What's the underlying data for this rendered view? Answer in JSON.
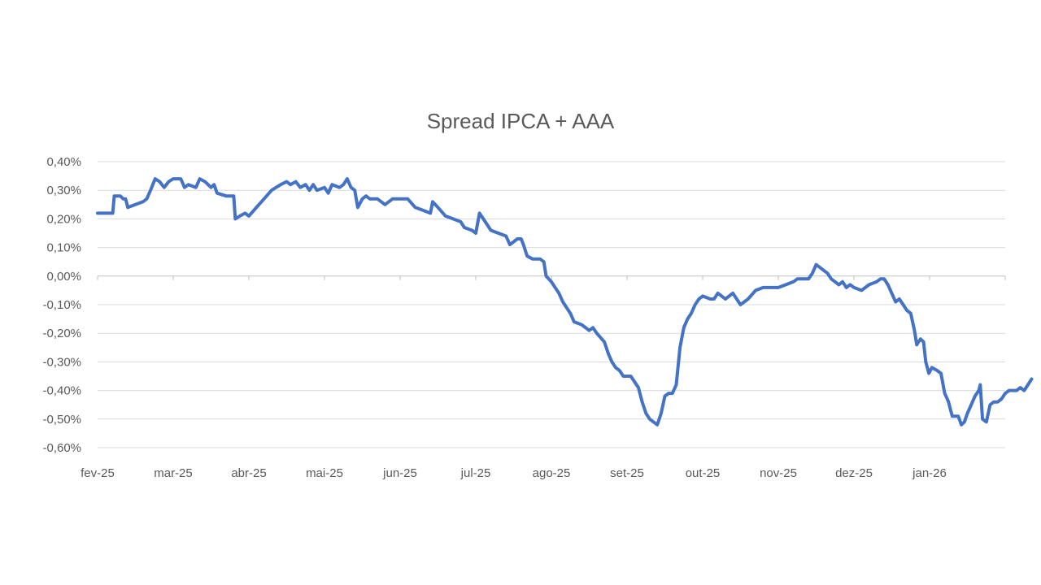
{
  "chart_data": {
    "type": "line",
    "title": "Spread IPCA + AAA",
    "xlabel": "",
    "ylabel": "",
    "ylim": [
      -0.6,
      0.4
    ],
    "yticks": [
      0.4,
      0.3,
      0.2,
      0.1,
      0.0,
      -0.1,
      -0.2,
      -0.3,
      -0.4,
      -0.5,
      -0.6
    ],
    "ytick_labels": [
      "0,40%",
      "0,30%",
      "0,20%",
      "0,10%",
      "0,00%",
      "-0,10%",
      "-0,20%",
      "-0,30%",
      "-0,40%",
      "-0,50%",
      "-0,60%"
    ],
    "xlim": [
      0,
      12
    ],
    "xtick_labels": [
      "fev-25",
      "mar-25",
      "abr-25",
      "mai-25",
      "jun-25",
      "jul-25",
      "ago-25",
      "set-25",
      "out-25",
      "nov-25",
      "dez-25",
      "jan-26"
    ],
    "grid": true,
    "legend": "none",
    "series": [
      {
        "name": "Spread IPCA + AAA",
        "color": "#4472C4",
        "points": [
          [
            0.0,
            0.22
          ],
          [
            0.2,
            0.22
          ],
          [
            0.22,
            0.28
          ],
          [
            0.3,
            0.28
          ],
          [
            0.34,
            0.27
          ],
          [
            0.37,
            0.27
          ],
          [
            0.4,
            0.24
          ],
          [
            0.5,
            0.25
          ],
          [
            0.6,
            0.26
          ],
          [
            0.65,
            0.27
          ],
          [
            0.7,
            0.3
          ],
          [
            0.76,
            0.34
          ],
          [
            0.82,
            0.33
          ],
          [
            0.88,
            0.31
          ],
          [
            0.94,
            0.33
          ],
          [
            1.0,
            0.34
          ],
          [
            1.1,
            0.34
          ],
          [
            1.15,
            0.31
          ],
          [
            1.2,
            0.32
          ],
          [
            1.3,
            0.31
          ],
          [
            1.35,
            0.34
          ],
          [
            1.42,
            0.33
          ],
          [
            1.5,
            0.31
          ],
          [
            1.54,
            0.32
          ],
          [
            1.58,
            0.29
          ],
          [
            1.7,
            0.28
          ],
          [
            1.8,
            0.28
          ],
          [
            1.82,
            0.2
          ],
          [
            1.88,
            0.21
          ],
          [
            1.95,
            0.22
          ],
          [
            2.0,
            0.21
          ],
          [
            2.1,
            0.24
          ],
          [
            2.2,
            0.27
          ],
          [
            2.3,
            0.3
          ],
          [
            2.42,
            0.32
          ],
          [
            2.5,
            0.33
          ],
          [
            2.55,
            0.32
          ],
          [
            2.62,
            0.33
          ],
          [
            2.68,
            0.31
          ],
          [
            2.75,
            0.32
          ],
          [
            2.8,
            0.3
          ],
          [
            2.85,
            0.32
          ],
          [
            2.9,
            0.3
          ],
          [
            3.0,
            0.31
          ],
          [
            3.05,
            0.29
          ],
          [
            3.1,
            0.32
          ],
          [
            3.2,
            0.31
          ],
          [
            3.25,
            0.32
          ],
          [
            3.3,
            0.34
          ],
          [
            3.35,
            0.31
          ],
          [
            3.4,
            0.3
          ],
          [
            3.44,
            0.24
          ],
          [
            3.5,
            0.27
          ],
          [
            3.55,
            0.28
          ],
          [
            3.6,
            0.27
          ],
          [
            3.7,
            0.27
          ],
          [
            3.8,
            0.25
          ],
          [
            3.9,
            0.27
          ],
          [
            4.0,
            0.27
          ],
          [
            4.1,
            0.27
          ],
          [
            4.2,
            0.24
          ],
          [
            4.3,
            0.23
          ],
          [
            4.4,
            0.22
          ],
          [
            4.43,
            0.26
          ],
          [
            4.5,
            0.24
          ],
          [
            4.6,
            0.21
          ],
          [
            4.7,
            0.2
          ],
          [
            4.8,
            0.19
          ],
          [
            4.85,
            0.17
          ],
          [
            4.95,
            0.16
          ],
          [
            5.0,
            0.15
          ],
          [
            5.05,
            0.22
          ],
          [
            5.1,
            0.2
          ],
          [
            5.2,
            0.16
          ],
          [
            5.3,
            0.15
          ],
          [
            5.4,
            0.14
          ],
          [
            5.45,
            0.11
          ],
          [
            5.5,
            0.12
          ],
          [
            5.55,
            0.13
          ],
          [
            5.6,
            0.13
          ],
          [
            5.63,
            0.11
          ],
          [
            5.68,
            0.07
          ],
          [
            5.75,
            0.06
          ],
          [
            5.8,
            0.06
          ],
          [
            5.85,
            0.06
          ],
          [
            5.9,
            0.05
          ],
          [
            5.93,
            0.0
          ],
          [
            6.0,
            -0.02
          ],
          [
            6.05,
            -0.04
          ],
          [
            6.1,
            -0.06
          ],
          [
            6.15,
            -0.09
          ],
          [
            6.2,
            -0.11
          ],
          [
            6.25,
            -0.13
          ],
          [
            6.3,
            -0.16
          ],
          [
            6.4,
            -0.17
          ],
          [
            6.5,
            -0.19
          ],
          [
            6.55,
            -0.18
          ],
          [
            6.6,
            -0.2
          ],
          [
            6.7,
            -0.23
          ],
          [
            6.75,
            -0.27
          ],
          [
            6.8,
            -0.3
          ],
          [
            6.85,
            -0.32
          ],
          [
            6.9,
            -0.33
          ],
          [
            6.95,
            -0.35
          ],
          [
            7.05,
            -0.35
          ],
          [
            7.1,
            -0.37
          ],
          [
            7.15,
            -0.39
          ],
          [
            7.2,
            -0.44
          ],
          [
            7.25,
            -0.48
          ],
          [
            7.3,
            -0.5
          ],
          [
            7.35,
            -0.51
          ],
          [
            7.4,
            -0.52
          ],
          [
            7.45,
            -0.48
          ],
          [
            7.5,
            -0.42
          ],
          [
            7.55,
            -0.41
          ],
          [
            7.6,
            -0.41
          ],
          [
            7.65,
            -0.38
          ],
          [
            7.7,
            -0.25
          ],
          [
            7.75,
            -0.18
          ],
          [
            7.8,
            -0.15
          ],
          [
            7.85,
            -0.13
          ],
          [
            7.9,
            -0.1
          ],
          [
            7.95,
            -0.08
          ],
          [
            8.0,
            -0.07
          ],
          [
            8.1,
            -0.08
          ],
          [
            8.15,
            -0.08
          ],
          [
            8.2,
            -0.06
          ],
          [
            8.25,
            -0.07
          ],
          [
            8.3,
            -0.08
          ],
          [
            8.35,
            -0.07
          ],
          [
            8.4,
            -0.06
          ],
          [
            8.45,
            -0.08
          ],
          [
            8.5,
            -0.1
          ],
          [
            8.6,
            -0.08
          ],
          [
            8.7,
            -0.05
          ],
          [
            8.8,
            -0.04
          ],
          [
            8.9,
            -0.04
          ],
          [
            9.0,
            -0.04
          ],
          [
            9.1,
            -0.03
          ],
          [
            9.2,
            -0.02
          ],
          [
            9.25,
            -0.01
          ],
          [
            9.3,
            -0.01
          ],
          [
            9.4,
            -0.01
          ],
          [
            9.45,
            0.01
          ],
          [
            9.5,
            0.04
          ],
          [
            9.55,
            0.03
          ],
          [
            9.6,
            0.02
          ],
          [
            9.65,
            0.01
          ],
          [
            9.7,
            -0.01
          ],
          [
            9.75,
            -0.02
          ],
          [
            9.8,
            -0.03
          ],
          [
            9.85,
            -0.02
          ],
          [
            9.9,
            -0.04
          ],
          [
            9.95,
            -0.03
          ],
          [
            10.0,
            -0.04
          ],
          [
            10.1,
            -0.05
          ],
          [
            10.2,
            -0.03
          ],
          [
            10.3,
            -0.02
          ],
          [
            10.35,
            -0.01
          ],
          [
            10.4,
            -0.01
          ],
          [
            10.45,
            -0.03
          ],
          [
            10.5,
            -0.06
          ],
          [
            10.55,
            -0.09
          ],
          [
            10.6,
            -0.08
          ],
          [
            10.65,
            -0.1
          ],
          [
            10.7,
            -0.12
          ],
          [
            10.75,
            -0.13
          ],
          [
            10.8,
            -0.19
          ],
          [
            10.83,
            -0.24
          ],
          [
            10.88,
            -0.22
          ],
          [
            10.92,
            -0.23
          ],
          [
            10.95,
            -0.3
          ],
          [
            10.99,
            -0.34
          ],
          [
            11.03,
            -0.32
          ],
          [
            11.1,
            -0.33
          ],
          [
            11.15,
            -0.34
          ],
          [
            11.2,
            -0.41
          ],
          [
            11.25,
            -0.44
          ],
          [
            11.28,
            -0.47
          ],
          [
            11.3,
            -0.49
          ],
          [
            11.38,
            -0.49
          ],
          [
            11.42,
            -0.52
          ],
          [
            11.46,
            -0.51
          ],
          [
            11.5,
            -0.48
          ],
          [
            11.55,
            -0.45
          ],
          [
            11.6,
            -0.42
          ],
          [
            11.65,
            -0.4
          ],
          [
            11.67,
            -0.38
          ],
          [
            11.7,
            -0.5
          ],
          [
            11.75,
            -0.51
          ],
          [
            11.8,
            -0.45
          ],
          [
            11.85,
            -0.44
          ],
          [
            11.9,
            -0.44
          ],
          [
            11.95,
            -0.43
          ],
          [
            12.0,
            -0.41
          ],
          [
            12.05,
            -0.4
          ],
          [
            12.1,
            -0.4
          ],
          [
            12.15,
            -0.4
          ],
          [
            12.2,
            -0.39
          ],
          [
            12.25,
            -0.4
          ],
          [
            12.3,
            -0.38
          ],
          [
            12.35,
            -0.36
          ]
        ]
      }
    ]
  }
}
